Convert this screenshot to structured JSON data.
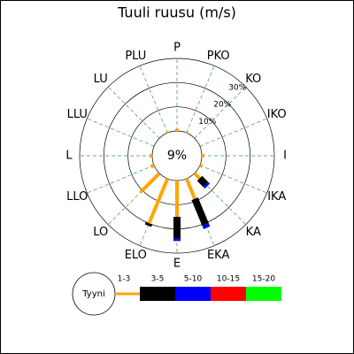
{
  "chart_data": {
    "type": "windrose",
    "title": "Tuuli ruusu (m/s)",
    "categories": [
      "P",
      "PKO",
      "KO",
      "IKO",
      "I",
      "IKA",
      "KA",
      "EKA",
      "E",
      "ELO",
      "LO",
      "LLO",
      "L",
      "LLU",
      "LU",
      "PLU"
    ],
    "calm": {
      "name": "Tyyni",
      "value": 9,
      "value_label": "9%"
    },
    "rlim": [
      0,
      30
    ],
    "rticks": [
      {
        "value": 10,
        "label": "10%"
      },
      {
        "value": 20,
        "label": "20%"
      },
      {
        "value": 30,
        "label": "30%"
      }
    ],
    "series": [
      {
        "name": "1-3",
        "color": "#ffa500",
        "values": [
          1,
          0.5,
          0,
          0,
          1,
          1,
          3,
          9,
          15,
          20,
          11,
          1.5,
          1,
          0,
          0,
          0.5
        ]
      },
      {
        "name": "3-5",
        "color": "#000000",
        "values": [
          0,
          0,
          0,
          0,
          0,
          0,
          3.5,
          11.5,
          9,
          1,
          0,
          0,
          0,
          0,
          0,
          0
        ]
      },
      {
        "name": "5-10",
        "color": "#0000ff",
        "values": [
          0,
          0,
          0,
          0,
          0,
          0,
          1,
          1.5,
          1,
          0,
          0,
          0,
          0,
          0,
          0,
          0
        ]
      },
      {
        "name": "10-15",
        "color": "#ff0000",
        "values": [
          0,
          0,
          0,
          0,
          0,
          0,
          0,
          0,
          0,
          0,
          0,
          0,
          0,
          0,
          0,
          0
        ]
      },
      {
        "name": "15-20",
        "color": "#00ff00",
        "values": [
          0,
          0,
          0,
          0,
          0,
          0,
          0,
          0,
          0,
          0,
          0,
          0,
          0,
          0,
          0,
          0
        ]
      }
    ]
  }
}
